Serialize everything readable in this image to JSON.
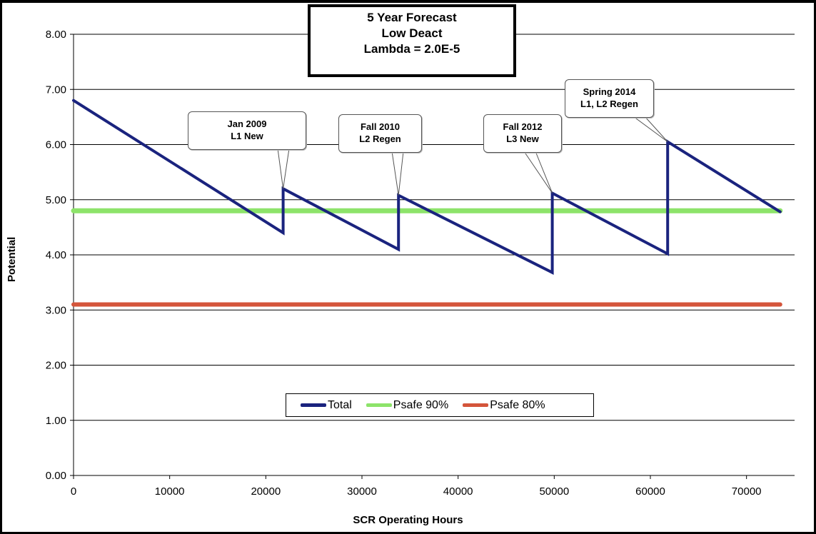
{
  "title_lines": [
    "5 Year Forecast",
    "Low Deact",
    "Lambda  = 2.0E-5"
  ],
  "colors": {
    "total": "#1a237e",
    "psafe90": "#8de36a",
    "psafe80": "#d4553b",
    "grid": "#000000"
  },
  "chart_data": {
    "type": "line",
    "title": "5 Year Forecast Low Deact Lambda  = 2.0E-5",
    "xlabel": "SCR Operating Hours",
    "ylabel": "Potential",
    "xlim": [
      0,
      75000
    ],
    "ylim": [
      0,
      8
    ],
    "x_ticks": [
      "0",
      "10000",
      "20000",
      "30000",
      "40000",
      "50000",
      "60000",
      "70000"
    ],
    "y_ticks": [
      "0.00",
      "1.00",
      "2.00",
      "3.00",
      "4.00",
      "5.00",
      "6.00",
      "7.00",
      "8.00"
    ],
    "grid": "horizontal",
    "legend_position": "bottom-center",
    "series": [
      {
        "name": "Total",
        "x": [
          0,
          21800,
          21800,
          33800,
          33800,
          49800,
          49800,
          61800,
          61800,
          73500
        ],
        "y": [
          6.8,
          4.4,
          5.2,
          4.1,
          5.08,
          3.68,
          5.12,
          4.02,
          6.05,
          4.78
        ]
      },
      {
        "name": "Psafe 90%",
        "x": [
          0,
          73500
        ],
        "y": [
          4.8,
          4.8
        ]
      },
      {
        "name": "Psafe 80%",
        "x": [
          0,
          73500
        ],
        "y": [
          3.1,
          3.1
        ]
      }
    ],
    "annotations": [
      {
        "lines": [
          "Jan 2009",
          "L1 New"
        ],
        "x": 21800,
        "y": 5.2
      },
      {
        "lines": [
          "Fall 2010",
          "L2 Regen"
        ],
        "x": 33800,
        "y": 5.08
      },
      {
        "lines": [
          "Fall 2012",
          "L3 New"
        ],
        "x": 49800,
        "y": 5.12
      },
      {
        "lines": [
          "Spring 2014",
          "L1, L2 Regen"
        ],
        "x": 61800,
        "y": 6.05
      }
    ]
  }
}
